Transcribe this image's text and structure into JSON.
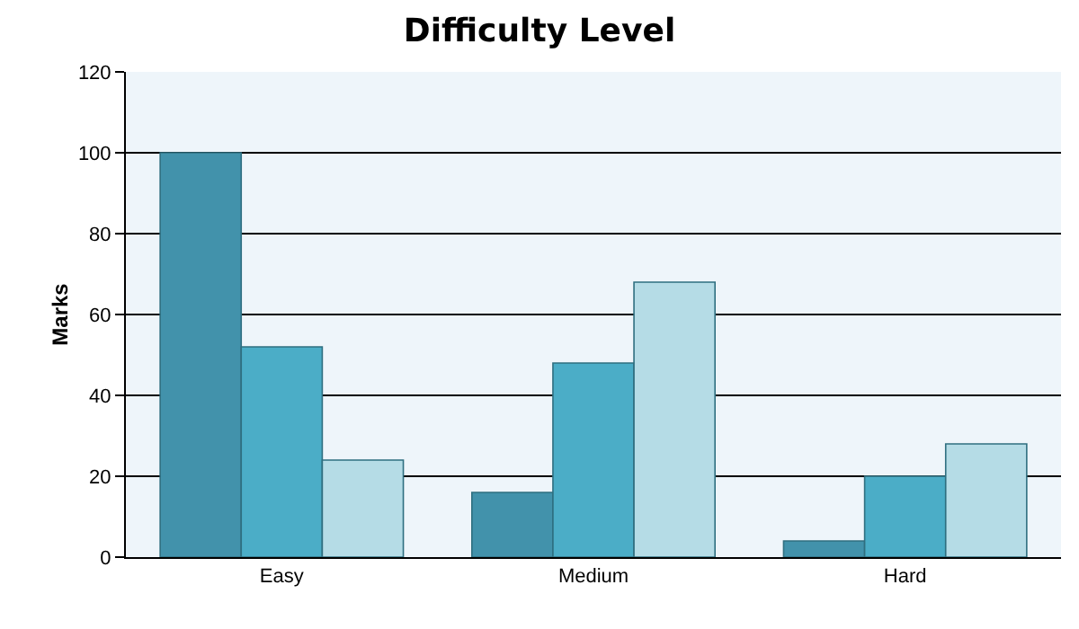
{
  "chart_data": {
    "type": "bar",
    "title": "Difficulty Level",
    "ylabel": "Marks",
    "categories": [
      "Easy",
      "Medium",
      "Hard"
    ],
    "series": [
      {
        "color": "#4292ab",
        "values": [
          100,
          16,
          4
        ]
      },
      {
        "color": "#4badc7",
        "values": [
          52,
          48,
          20
        ]
      },
      {
        "color": "#b5dce6",
        "values": [
          24,
          68,
          28
        ]
      }
    ],
    "ylim": [
      0,
      120
    ],
    "yticks": [
      0,
      20,
      40,
      60,
      80,
      100,
      120
    ],
    "grid": "y"
  }
}
